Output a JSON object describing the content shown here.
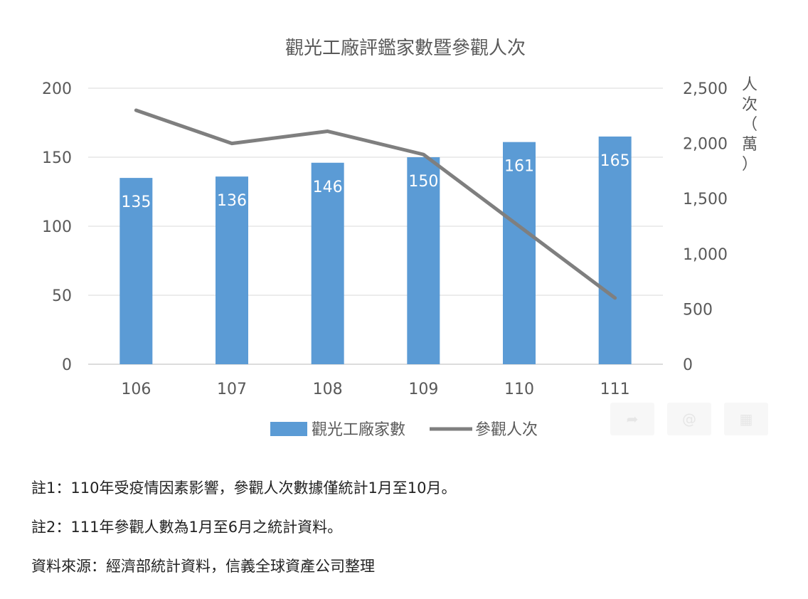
{
  "chart_data": {
    "type": "bar+line",
    "title": "觀光工廠評鑑家數暨參觀人次",
    "categories": [
      "106",
      "107",
      "108",
      "109",
      "110",
      "111"
    ],
    "series": [
      {
        "name": "觀光工廠家數",
        "type": "bar",
        "axis": "left",
        "color": "#5B9BD5",
        "values": [
          135,
          136,
          146,
          150,
          161,
          165
        ]
      },
      {
        "name": "參觀人次",
        "type": "line",
        "axis": "right",
        "color": "#7F7F7F",
        "values": [
          2300,
          2000,
          2110,
          1900,
          1250,
          600
        ]
      }
    ],
    "y_left": {
      "min": 0,
      "max": 200,
      "ticks": [
        "0",
        "50",
        "100",
        "150",
        "200"
      ]
    },
    "y_right": {
      "min": 0,
      "max": 2500,
      "ticks": [
        "0",
        "500",
        "1,000",
        "1,500",
        "2,000",
        "2,500"
      ],
      "label_chars": [
        "人",
        "次",
        "（",
        "萬",
        "）"
      ]
    },
    "grid": true,
    "legend": "bottom"
  },
  "toolbar_icons": [
    "share-icon",
    "at-icon",
    "grid-icon"
  ],
  "notes": [
    "註1：110年受疫情因素影響，參觀人次數據僅統計1月至10月。",
    "註2：111年參觀人數為1月至6月之統計資料。",
    "資料來源：經濟部統計資料，信義全球資產公司整理"
  ]
}
